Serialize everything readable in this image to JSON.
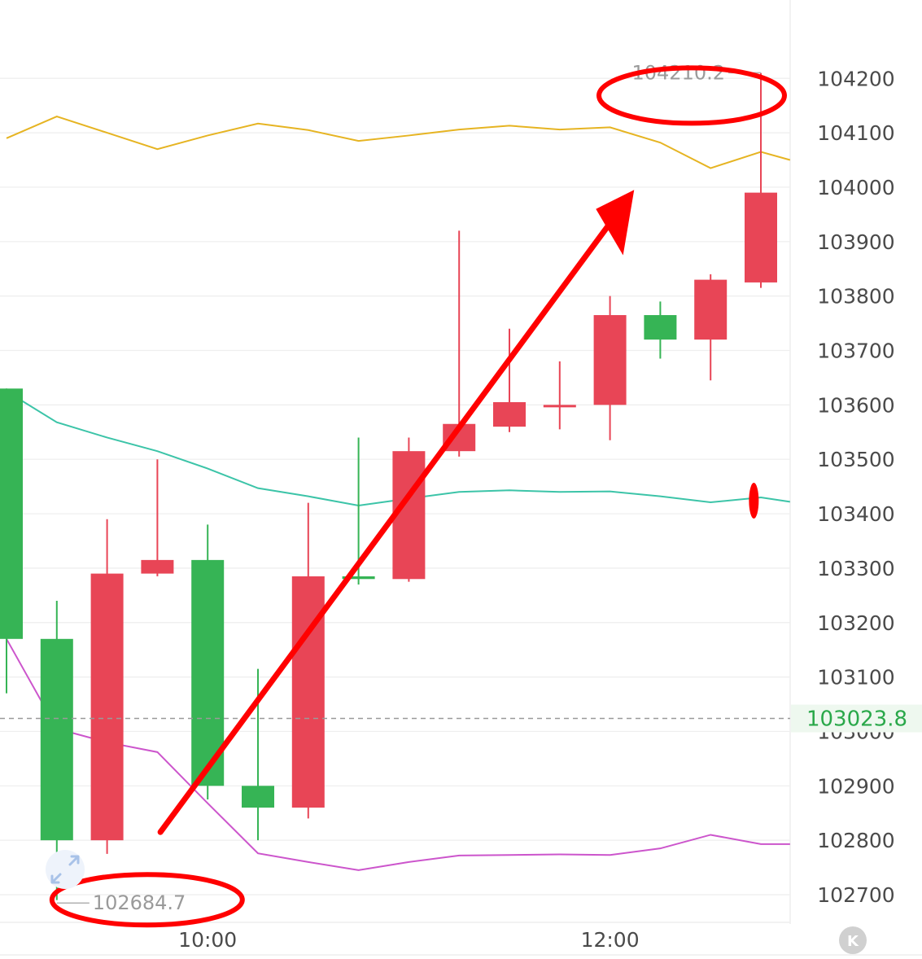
{
  "chart_data": {
    "type": "candlestick",
    "title": "",
    "xlabel": "",
    "ylabel": "",
    "ylim": [
      102640,
      104320
    ],
    "y_ticks": [
      "104200",
      "104100",
      "104000",
      "103900",
      "103800",
      "103700",
      "103600",
      "103500",
      "103400",
      "103300",
      "103200",
      "103100",
      "103000",
      "102900",
      "102800",
      "102700"
    ],
    "x_ticks": [
      {
        "slot": 4,
        "label": "10:00"
      },
      {
        "slot": 12,
        "label": "12:00"
      }
    ],
    "candles": [
      {
        "slot": 0,
        "open": 103630,
        "high": 103630,
        "low": 103070,
        "close": 103170
      },
      {
        "slot": 1,
        "open": 103170,
        "high": 103240,
        "low": 102690,
        "close": 102800
      },
      {
        "slot": 2,
        "open": 102800,
        "high": 103390,
        "low": 102775,
        "close": 103290
      },
      {
        "slot": 3,
        "open": 103290,
        "high": 103500,
        "low": 103285,
        "close": 103315
      },
      {
        "slot": 4,
        "open": 103315,
        "high": 103380,
        "low": 102875,
        "close": 102900
      },
      {
        "slot": 5,
        "open": 102900,
        "high": 103115,
        "low": 102800,
        "close": 102860
      },
      {
        "slot": 6,
        "open": 102860,
        "high": 103420,
        "low": 102840,
        "close": 103285
      },
      {
        "slot": 7,
        "open": 103285,
        "high": 103540,
        "low": 103270,
        "close": 103280
      },
      {
        "slot": 8,
        "open": 103280,
        "high": 103540,
        "low": 103275,
        "close": 103515
      },
      {
        "slot": 9,
        "open": 103515,
        "high": 103920,
        "low": 103505,
        "close": 103565
      },
      {
        "slot": 10,
        "open": 103560,
        "high": 103740,
        "low": 103550,
        "close": 103605
      },
      {
        "slot": 11,
        "open": 103600,
        "high": 103680,
        "low": 103555,
        "close": 103600
      },
      {
        "slot": 12,
        "open": 103600,
        "high": 103800,
        "low": 103535,
        "close": 103765
      },
      {
        "slot": 13,
        "open": 103765,
        "high": 103790,
        "low": 103685,
        "close": 103720
      },
      {
        "slot": 14,
        "open": 103720,
        "high": 103840,
        "low": 103645,
        "close": 103830
      },
      {
        "slot": 15,
        "open": 103825,
        "high": 104210,
        "low": 103815,
        "close": 103990
      }
    ],
    "lines": [
      {
        "color": "#e6b422",
        "points": [
          [
            0,
            104090
          ],
          [
            1,
            104130
          ],
          [
            2,
            104100
          ],
          [
            3,
            104070
          ],
          [
            4,
            104095
          ],
          [
            5,
            104117
          ],
          [
            6,
            104105
          ],
          [
            7,
            104085
          ],
          [
            8,
            104095
          ],
          [
            9,
            104106
          ],
          [
            10,
            104113
          ],
          [
            11,
            104106
          ],
          [
            12,
            104110
          ],
          [
            13,
            104082
          ],
          [
            14,
            104035
          ],
          [
            15,
            104065
          ],
          [
            15.58,
            104050
          ]
        ]
      },
      {
        "color": "#3cc4a8",
        "points": [
          [
            0,
            103625
          ],
          [
            1,
            103568
          ],
          [
            2,
            103540
          ],
          [
            3,
            103515
          ],
          [
            4,
            103483
          ],
          [
            5,
            103447
          ],
          [
            6,
            103432
          ],
          [
            7,
            103415
          ],
          [
            8,
            103428
          ],
          [
            9,
            103440
          ],
          [
            10,
            103443
          ],
          [
            11,
            103440
          ],
          [
            12,
            103441
          ],
          [
            13,
            103432
          ],
          [
            14,
            103421
          ],
          [
            15,
            103430
          ],
          [
            15.58,
            103422
          ]
        ]
      },
      {
        "color": "#cc55cc",
        "points": [
          [
            0,
            103170
          ],
          [
            1,
            103005
          ],
          [
            2,
            102980
          ],
          [
            3,
            102962
          ],
          [
            4,
            102868
          ],
          [
            5,
            102776
          ],
          [
            6,
            102760
          ],
          [
            7,
            102745
          ],
          [
            8,
            102760
          ],
          [
            9,
            102772
          ],
          [
            10,
            102773
          ],
          [
            11,
            102774
          ],
          [
            12,
            102773
          ],
          [
            13,
            102785
          ],
          [
            14,
            102810
          ],
          [
            15,
            102793
          ],
          [
            15.58,
            102793
          ]
        ]
      }
    ],
    "high_annotation": {
      "slot": 15,
      "value": 104210.2,
      "label": "104210.2"
    },
    "low_annotation": {
      "slot": 1,
      "value": 102684.7,
      "label": "102684.7"
    },
    "current_price": {
      "value": 103023.8,
      "label": "103023.8"
    },
    "colors": {
      "up": "#e84556",
      "down": "#36b455",
      "grid": "#eeeeee",
      "axis_text": "#4a4a4a",
      "markup": "#ff0000"
    }
  },
  "overlay": {
    "icons": [
      "expand-icon",
      "k-logo-icon"
    ],
    "k_logo_text": "K"
  }
}
